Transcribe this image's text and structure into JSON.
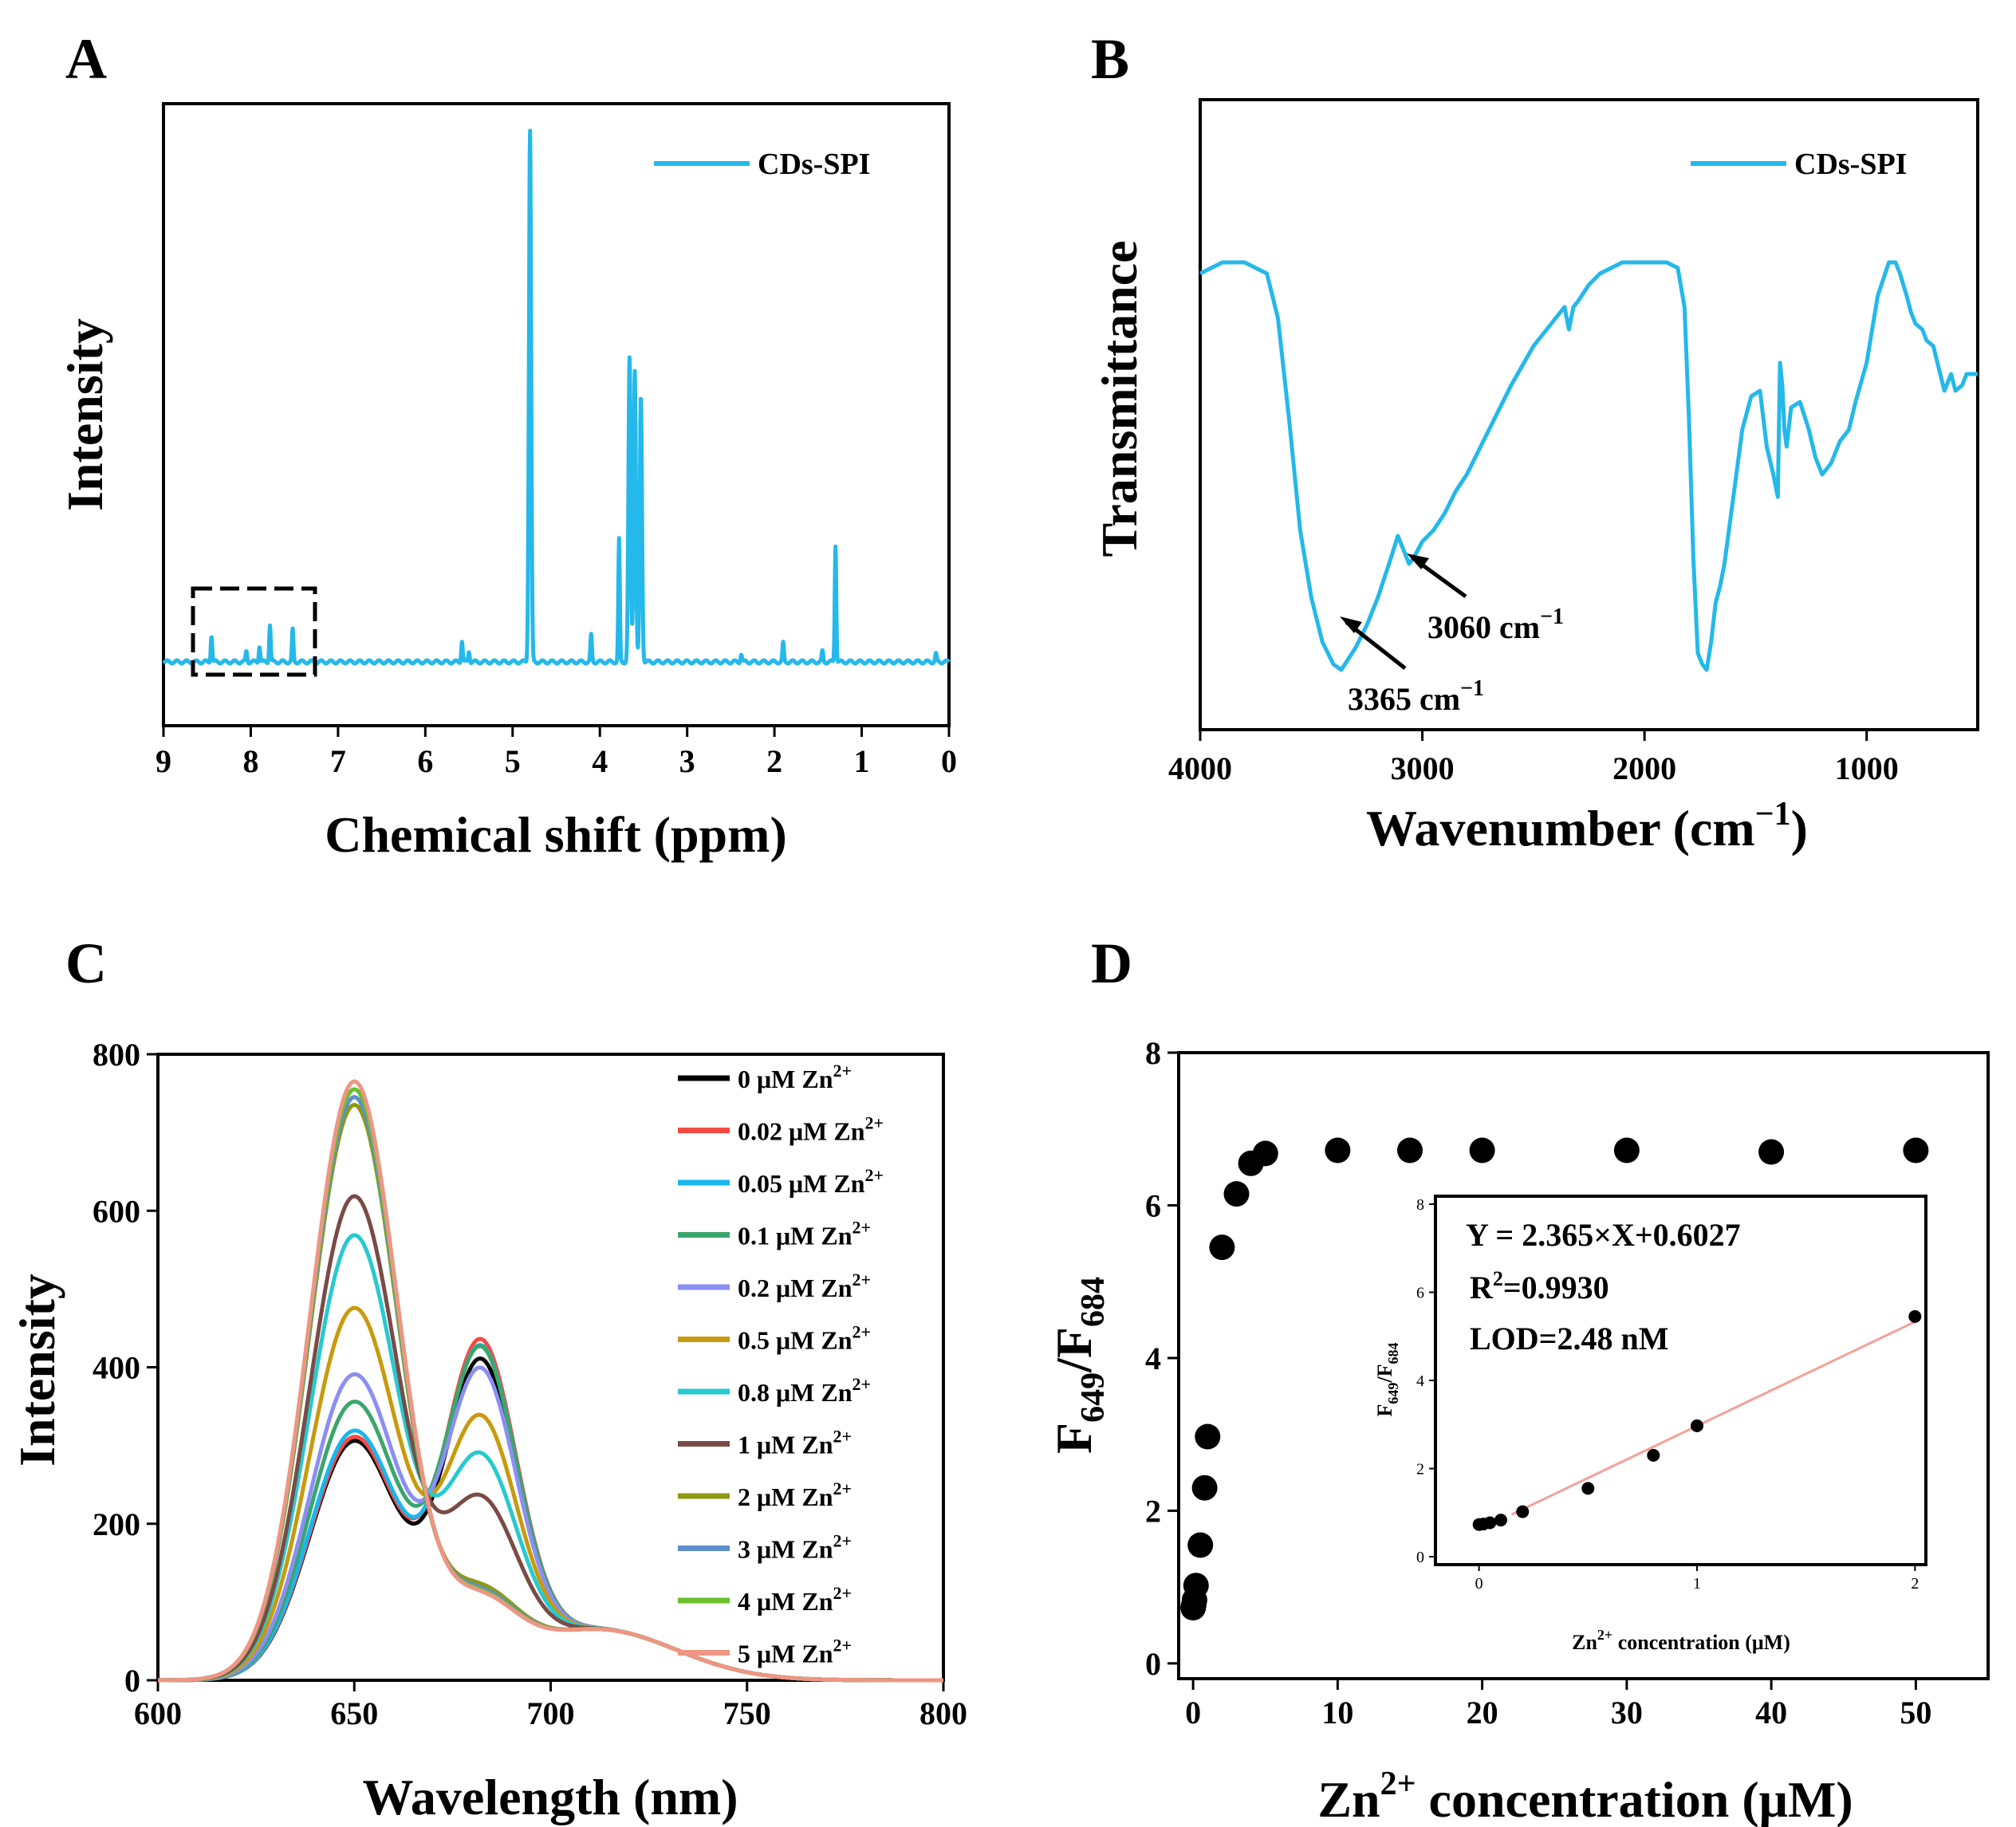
{
  "colors": {
    "cds_spi": "#25b8ea",
    "axis": "#000000",
    "fit_line": "#f4a09b",
    "marker": "#000000"
  },
  "chart_data": [
    {
      "panel": "A",
      "type": "line",
      "xlabel": "Chemical shift (ppm)",
      "ylabel": "Intensity",
      "xlim": [
        9,
        0
      ],
      "ylim": [
        -0.12,
        1.05
      ],
      "xticks": [
        "9",
        "8",
        "7",
        "6",
        "5",
        "4",
        "3",
        "2",
        "1",
        "0"
      ],
      "legend": [
        "CDs-SPI"
      ],
      "annotations": [
        "dashed box 7.3-8.7 ppm"
      ],
      "series": [
        {
          "name": "CDs-SPI",
          "color": "#25b8ea",
          "peaks": [
            {
              "x": 8.45,
              "y": 0.05
            },
            {
              "x": 8.05,
              "y": 0.02
            },
            {
              "x": 7.9,
              "y": 0.03
            },
            {
              "x": 7.78,
              "y": 0.07
            },
            {
              "x": 7.52,
              "y": 0.06
            },
            {
              "x": 5.58,
              "y": 0.04
            },
            {
              "x": 5.5,
              "y": 0.02
            },
            {
              "x": 4.8,
              "y": 1.0
            },
            {
              "x": 4.1,
              "y": 0.05
            },
            {
              "x": 3.78,
              "y": 0.23
            },
            {
              "x": 3.66,
              "y": 0.57
            },
            {
              "x": 3.6,
              "y": 0.55
            },
            {
              "x": 3.53,
              "y": 0.5
            },
            {
              "x": 2.38,
              "y": 0.015
            },
            {
              "x": 1.9,
              "y": 0.035
            },
            {
              "x": 1.45,
              "y": 0.02
            },
            {
              "x": 1.3,
              "y": 0.22
            },
            {
              "x": 0.15,
              "y": 0.015
            }
          ]
        }
      ]
    },
    {
      "panel": "B",
      "type": "line",
      "xlabel": "Wavenumber (cm⁻¹)",
      "ylabel": "Transmittance",
      "xlim": [
        4000,
        500
      ],
      "ylim": [
        0,
        1
      ],
      "xticks": [
        "4000",
        "3000",
        "2000",
        "1000"
      ],
      "legend": [
        "CDs-SPI"
      ],
      "annotations": [
        "3365 cm⁻¹",
        "3060 cm⁻¹"
      ],
      "series": [
        {
          "name": "CDs-SPI",
          "color": "#25b8ea",
          "x": [
            4000,
            3900,
            3800,
            3750,
            3700,
            3650,
            3600,
            3550,
            3500,
            3450,
            3400,
            3365,
            3300,
            3250,
            3200,
            3150,
            3110,
            3080,
            3060,
            3040,
            3000,
            2950,
            2900,
            2850,
            2800,
            2700,
            2600,
            2500,
            2400,
            2360,
            2340,
            2320,
            2300,
            2250,
            2200,
            2150,
            2100,
            2000,
            1900,
            1850,
            1820,
            1800,
            1780,
            1760,
            1740,
            1720,
            1700,
            1680,
            1660,
            1640,
            1620,
            1600,
            1560,
            1520,
            1480,
            1450,
            1420,
            1400,
            1390,
            1380,
            1370,
            1360,
            1340,
            1300,
            1260,
            1230,
            1200,
            1160,
            1120,
            1080,
            1050,
            1000,
            950,
            900,
            870,
            850,
            820,
            800,
            780,
            750,
            730,
            700,
            650,
            620,
            600,
            570,
            550,
            500
          ],
          "y": [
            0.76,
            0.78,
            0.78,
            0.77,
            0.76,
            0.68,
            0.5,
            0.3,
            0.18,
            0.1,
            0.06,
            0.05,
            0.09,
            0.13,
            0.18,
            0.24,
            0.29,
            0.26,
            0.24,
            0.25,
            0.28,
            0.3,
            0.33,
            0.37,
            0.4,
            0.48,
            0.56,
            0.63,
            0.68,
            0.7,
            0.66,
            0.7,
            0.71,
            0.74,
            0.76,
            0.77,
            0.78,
            0.78,
            0.78,
            0.77,
            0.7,
            0.5,
            0.25,
            0.08,
            0.06,
            0.05,
            0.1,
            0.17,
            0.2,
            0.24,
            0.3,
            0.36,
            0.48,
            0.54,
            0.55,
            0.45,
            0.4,
            0.36,
            0.6,
            0.56,
            0.48,
            0.45,
            0.52,
            0.53,
            0.48,
            0.43,
            0.4,
            0.42,
            0.46,
            0.48,
            0.53,
            0.6,
            0.72,
            0.78,
            0.78,
            0.76,
            0.72,
            0.69,
            0.67,
            0.66,
            0.64,
            0.63,
            0.55,
            0.58,
            0.55,
            0.56,
            0.58,
            0.58
          ]
        }
      ]
    },
    {
      "panel": "C",
      "type": "line",
      "xlabel": "Wavelength (nm)",
      "ylabel": "Intensity",
      "xlim": [
        600,
        800
      ],
      "ylim": [
        0,
        800
      ],
      "xticks": [
        "600",
        "650",
        "700",
        "750",
        "800"
      ],
      "yticks": [
        "0",
        "200",
        "400",
        "600",
        "800"
      ],
      "series": [
        {
          "name": "0 μM Zn",
          "sup": "2+",
          "color": "#000000",
          "a": 305,
          "b": 385
        },
        {
          "name": "0.02 μM Zn",
          "sup": "2+",
          "color": "#f44a43",
          "a": 310,
          "b": 410
        },
        {
          "name": "0.05 μM Zn",
          "sup": "2+",
          "color": "#18b7ef",
          "a": 318,
          "b": 402
        },
        {
          "name": "0.1 μM Zn",
          "sup": "2+",
          "color": "#3aa66b",
          "a": 355,
          "b": 400
        },
        {
          "name": "0.2 μM Zn",
          "sup": "2+",
          "color": "#8b8ef2",
          "a": 390,
          "b": 372
        },
        {
          "name": "0.5 μM Zn",
          "sup": "2+",
          "color": "#c89a0d",
          "a": 475,
          "b": 310
        },
        {
          "name": "0.8 μM Zn",
          "sup": "2+",
          "color": "#28c9cf",
          "a": 568,
          "b": 260
        },
        {
          "name": "1 μM Zn",
          "sup": "2+",
          "color": "#7a4b45",
          "a": 618,
          "b": 205
        },
        {
          "name": "2 μM Zn",
          "sup": "2+",
          "color": "#8e9a12",
          "a": 735,
          "b": 90
        },
        {
          "name": "3 μM Zn",
          "sup": "2+",
          "color": "#5e8ecc",
          "a": 745,
          "b": 85
        },
        {
          "name": "4 μM Zn",
          "sup": "2+",
          "color": "#6bbf2d",
          "a": 755,
          "b": 82
        },
        {
          "name": "5 μM Zn",
          "sup": "2+",
          "color": "#ee9583",
          "a": 765,
          "b": 80
        }
      ]
    },
    {
      "panel": "D",
      "type": "scatter",
      "xlabel_parts": [
        "Zn",
        "2+",
        " concentration (μM)"
      ],
      "ylabel_parts": [
        "F",
        "649",
        "/F",
        "684"
      ],
      "xlim": [
        -1,
        55
      ],
      "ylim": [
        -0.2,
        8
      ],
      "xticks": [
        "0",
        "10",
        "20",
        "30",
        "40",
        "50"
      ],
      "yticks": [
        "0",
        "2",
        "4",
        "6",
        "8"
      ],
      "x": [
        0,
        0.02,
        0.05,
        0.1,
        0.2,
        0.5,
        0.8,
        1,
        2,
        3,
        4,
        5,
        10,
        15,
        20,
        30,
        40,
        50
      ],
      "y": [
        0.73,
        0.74,
        0.77,
        0.83,
        1.02,
        1.55,
        2.3,
        2.97,
        5.45,
        6.15,
        6.55,
        6.68,
        6.72,
        6.72,
        6.72,
        6.72,
        6.7,
        6.72
      ],
      "inset": {
        "type": "scatter+fit",
        "xlabel_parts": [
          "Zn",
          "2+",
          " concentration (μM)"
        ],
        "ylabel_parts": [
          "F",
          "649",
          "/F",
          "684"
        ],
        "xlim": [
          -0.2,
          2.05
        ],
        "ylim": [
          0,
          8
        ],
        "xticks": [
          "0",
          "1",
          "2"
        ],
        "yticks": [
          "0",
          "2",
          "4",
          "6",
          "8"
        ],
        "x": [
          0,
          0.02,
          0.05,
          0.1,
          0.2,
          0.5,
          0.8,
          1,
          2
        ],
        "y": [
          0.73,
          0.74,
          0.77,
          0.83,
          1.02,
          1.55,
          2.3,
          2.97,
          5.45
        ],
        "fit": {
          "slope": 2.365,
          "intercept": 0.6027,
          "x_range": [
            0.15,
            2.0
          ]
        },
        "equation": "Y = 2.365×X+0.6027",
        "r2_parts": [
          "R",
          "2",
          "=0.9930"
        ],
        "lod": "LOD=2.48 nM"
      }
    }
  ],
  "panels": {
    "a_letter": "A",
    "b_letter": "B",
    "c_letter": "C",
    "d_letter": "D",
    "a_legend": "CDs-SPI",
    "b_legend": "CDs-SPI",
    "b_annot1": "3060 cm",
    "b_annot2": "3365 cm",
    "b_annot_sup": "−1",
    "b_xlabel_main": "Wavenumber (cm",
    "b_xlabel_sup": "−1",
    "b_xlabel_end": ")"
  }
}
